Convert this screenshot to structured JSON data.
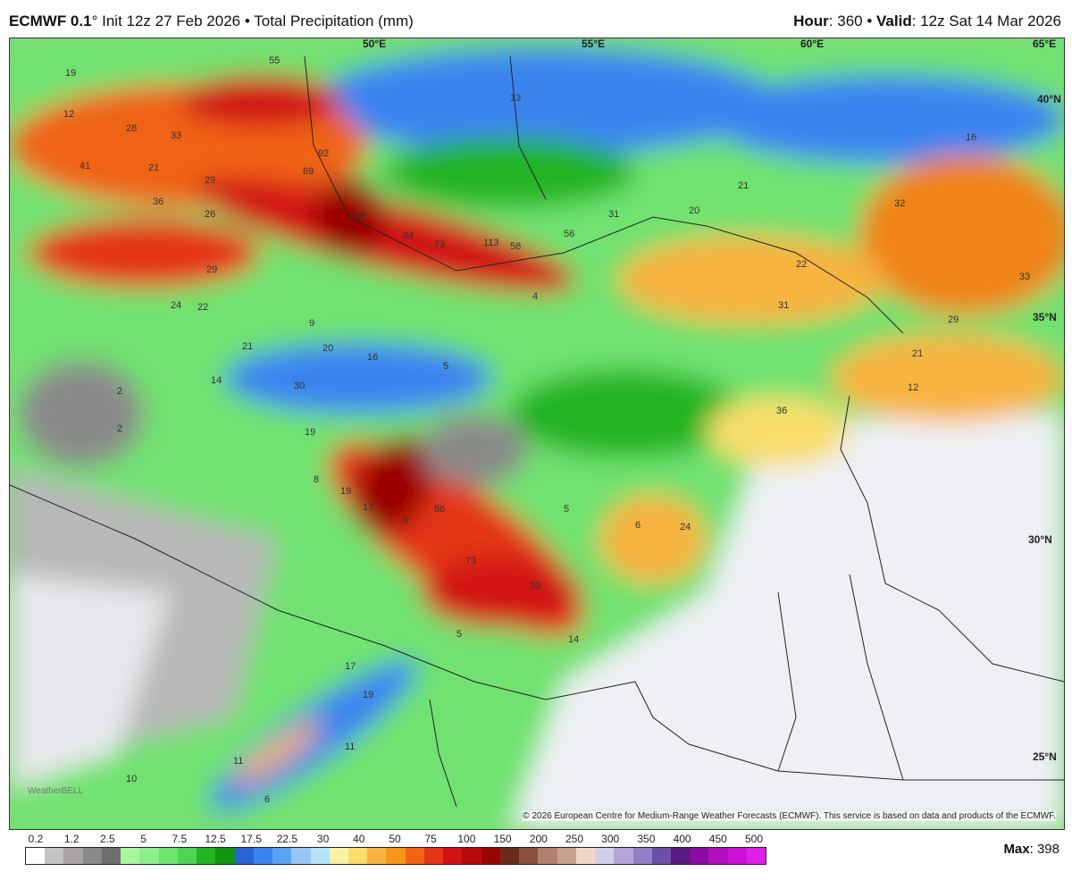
{
  "header": {
    "model": "ECMWF 0.1",
    "degree": "°",
    "init": "Init 12z 27 Feb 2026",
    "bullet": "•",
    "field": "Total Precipitation (mm)",
    "hour_label": "Hour",
    "hour": "360",
    "valid_label": "Valid",
    "valid": "12z Sat 14 Mar 2026"
  },
  "map": {
    "lon_labels": [
      "50°E",
      "55°E",
      "60°E",
      "65°E"
    ],
    "lat_labels": [
      "40°N",
      "35°N",
      "30°N",
      "25°N"
    ],
    "value_labels": [
      "19",
      "12",
      "28",
      "33",
      "41",
      "21",
      "29",
      "36",
      "26",
      "92",
      "69",
      "149",
      "84",
      "73",
      "113",
      "58",
      "55",
      "56",
      "31",
      "20",
      "21",
      "16",
      "32",
      "22",
      "31",
      "33",
      "29",
      "21",
      "12",
      "36",
      "24",
      "29",
      "22",
      "21",
      "14",
      "30",
      "19",
      "20",
      "16",
      "19",
      "8",
      "17",
      "6",
      "86",
      "73",
      "33",
      "5",
      "6",
      "24",
      "14",
      "5",
      "17",
      "19",
      "11",
      "11",
      "6",
      "10",
      "2",
      "4",
      "9",
      "13",
      "5",
      "2"
    ],
    "watermark": "WeatherBELL",
    "copyright": "© 2026 European Centre for Medium-Range Weather Forecasts (ECMWF). This service is based on data and products of the ECMWF."
  },
  "colorbar": {
    "ticks": [
      "0.2",
      "1.2",
      "2.5",
      "5",
      "7.5",
      "12.5",
      "17.5",
      "22.5",
      "30",
      "40",
      "50",
      "75",
      "100",
      "150",
      "200",
      "250",
      "300",
      "350",
      "400",
      "450",
      "500"
    ],
    "colors": [
      "#ffffff",
      "#c4c4c4",
      "#aca4a4",
      "#8a8a8a",
      "#6e6e6e",
      "#aaf5a0",
      "#8eee8a",
      "#6fe26f",
      "#4fd44f",
      "#22b422",
      "#129612",
      "#2a64d6",
      "#3a84f0",
      "#5aa2f2",
      "#94c8f2",
      "#b4e2f8",
      "#f8f2a2",
      "#f8de6a",
      "#f8b440",
      "#f89418",
      "#f06414",
      "#e43614",
      "#d21212",
      "#b80a0a",
      "#9a0404",
      "#6a2a1e",
      "#8a5040",
      "#b08070",
      "#c8a090",
      "#f0d8c8",
      "#d0d0e8",
      "#b4a4d8",
      "#9080c8",
      "#6a50a8",
      "#5a1a80",
      "#8a0ca0",
      "#b010c0",
      "#d010d8",
      "#e020e8"
    ],
    "max_label": "Max",
    "max_value": "398"
  }
}
